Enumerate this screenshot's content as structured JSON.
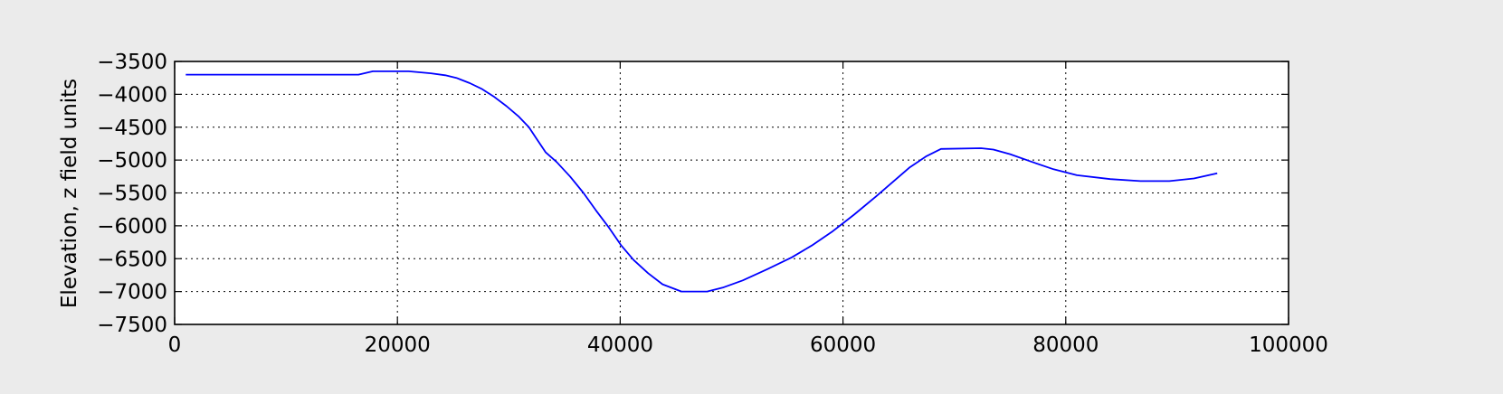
{
  "chart_data": {
    "type": "line",
    "title": "",
    "xlabel": "",
    "ylabel": "Elevation, z field units",
    "xlim": [
      0,
      100000
    ],
    "ylim": [
      -7500,
      -3500
    ],
    "xticks": [
      "0",
      "20000",
      "40000",
      "60000",
      "80000",
      "100000"
    ],
    "yticks": [
      "−3500",
      "−4000",
      "−4500",
      "−5000",
      "−5500",
      "−6000",
      "−6500",
      "−7000",
      "−7500"
    ],
    "grid": true,
    "line_color": "#0000ff",
    "background": "#ffffff",
    "figure_background": "#ebebeb",
    "series": [
      {
        "x": [
          1000,
          16500,
          17800,
          21000,
          23000,
          24300,
          25300,
          26500,
          27600,
          28700,
          29800,
          30900,
          31800,
          32500,
          33300,
          34300,
          35500,
          36700,
          37800,
          39000,
          40100,
          41200,
          42500,
          43800,
          45500,
          47800,
          49200,
          51000,
          53200,
          55400,
          57200,
          59100,
          61000,
          63000,
          64500,
          66000,
          67500,
          68800,
          72400,
          73500,
          75000,
          77000,
          78900,
          81000,
          84000,
          86700,
          89300,
          91500,
          93600
        ],
        "y": [
          -3700,
          -3700,
          -3650,
          -3650,
          -3680,
          -3710,
          -3750,
          -3830,
          -3920,
          -4040,
          -4180,
          -4340,
          -4500,
          -4680,
          -4880,
          -5030,
          -5250,
          -5500,
          -5760,
          -6030,
          -6300,
          -6520,
          -6720,
          -6890,
          -7000,
          -7000,
          -6940,
          -6830,
          -6660,
          -6480,
          -6300,
          -6080,
          -5830,
          -5550,
          -5330,
          -5110,
          -4940,
          -4830,
          -4820,
          -4840,
          -4910,
          -5030,
          -5140,
          -5230,
          -5290,
          -5320,
          -5320,
          -5280,
          -5200
        ]
      }
    ]
  }
}
